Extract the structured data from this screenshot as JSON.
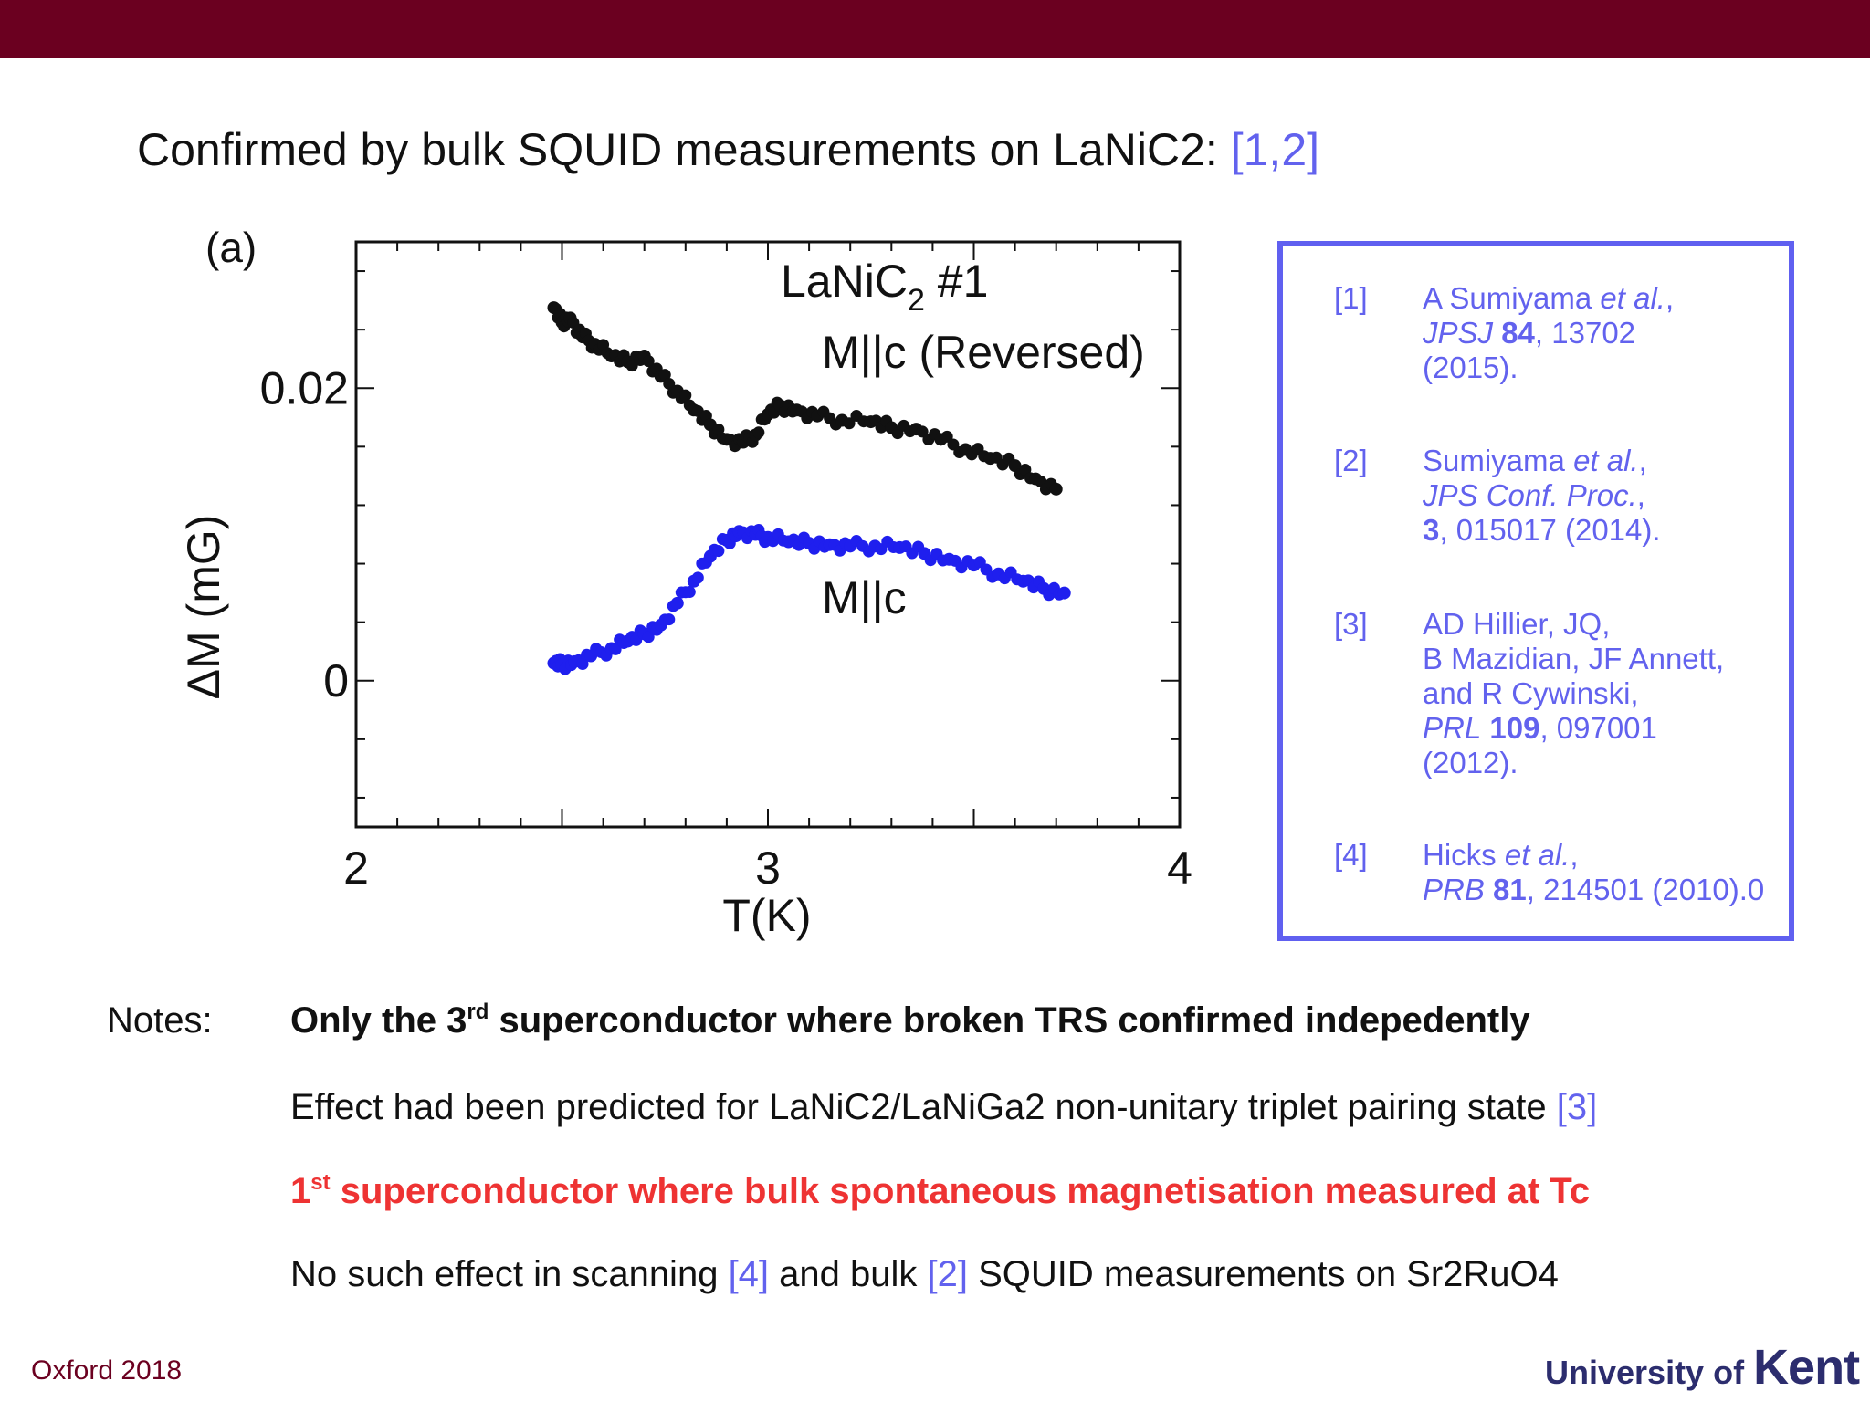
{
  "header": {
    "title_text": "Confirmed by bulk SQUID measurements on LaNiC2:",
    "title_cite": "[1,2]"
  },
  "figure": {
    "panel_label": "(a)",
    "sample_label": "LaNiC",
    "sample_sub": "2",
    "sample_suffix": " #1",
    "reversed_label": "M||c (Reversed)",
    "normal_label": "M||c"
  },
  "chart_data": {
    "type": "scatter",
    "xlabel": "T(K)",
    "ylabel": "ΔM (mG)",
    "xlim": [
      2,
      4
    ],
    "ylim": [
      -0.01,
      0.03
    ],
    "x_ticks": [
      2,
      3,
      4
    ],
    "x_tick_labels": [
      "2",
      "3",
      "4"
    ],
    "y_ticks": [
      0,
      0.02
    ],
    "y_tick_labels": [
      "0",
      "0.02"
    ],
    "series": [
      {
        "name": "M||c (Reversed)",
        "color": "#111111",
        "points": [
          [
            2.48,
            0.0255
          ],
          [
            2.5,
            0.0245
          ],
          [
            2.52,
            0.0248
          ],
          [
            2.55,
            0.0235
          ],
          [
            2.58,
            0.023
          ],
          [
            2.62,
            0.0222
          ],
          [
            2.66,
            0.0218
          ],
          [
            2.7,
            0.0222
          ],
          [
            2.74,
            0.0208
          ],
          [
            2.78,
            0.0198
          ],
          [
            2.82,
            0.0185
          ],
          [
            2.86,
            0.0175
          ],
          [
            2.9,
            0.0165
          ],
          [
            2.94,
            0.0163
          ],
          [
            2.97,
            0.0168
          ],
          [
            3.0,
            0.0182
          ],
          [
            3.03,
            0.0188
          ],
          [
            3.07,
            0.0185
          ],
          [
            3.12,
            0.0181
          ],
          [
            3.18,
            0.0178
          ],
          [
            3.25,
            0.0177
          ],
          [
            3.3,
            0.0173
          ],
          [
            3.36,
            0.0172
          ],
          [
            3.42,
            0.0165
          ],
          [
            3.48,
            0.0158
          ],
          [
            3.54,
            0.0152
          ],
          [
            3.6,
            0.0147
          ],
          [
            3.65,
            0.0138
          ],
          [
            3.7,
            0.0131
          ]
        ]
      },
      {
        "name": "M||c",
        "color": "#1f1fee",
        "points": [
          [
            2.48,
            0.0012
          ],
          [
            2.5,
            0.0011
          ],
          [
            2.53,
            0.0013
          ],
          [
            2.57,
            0.0017
          ],
          [
            2.62,
            0.0022
          ],
          [
            2.66,
            0.0027
          ],
          [
            2.7,
            0.0032
          ],
          [
            2.74,
            0.0038
          ],
          [
            2.78,
            0.0053
          ],
          [
            2.82,
            0.0068
          ],
          [
            2.86,
            0.0085
          ],
          [
            2.9,
            0.0096
          ],
          [
            2.93,
            0.0102
          ],
          [
            2.97,
            0.01
          ],
          [
            3.0,
            0.0098
          ],
          [
            3.05,
            0.0095
          ],
          [
            3.1,
            0.0094
          ],
          [
            3.15,
            0.0093
          ],
          [
            3.2,
            0.0092
          ],
          [
            3.26,
            0.0092
          ],
          [
            3.32,
            0.0091
          ],
          [
            3.38,
            0.0087
          ],
          [
            3.44,
            0.0083
          ],
          [
            3.5,
            0.0079
          ],
          [
            3.56,
            0.0073
          ],
          [
            3.62,
            0.0068
          ],
          [
            3.67,
            0.0063
          ],
          [
            3.72,
            0.006
          ]
        ]
      }
    ]
  },
  "references": [
    {
      "num": "[1]",
      "lines": [
        [
          {
            "t": "A Sumiyama "
          },
          {
            "t": "et al.",
            "s": "i"
          },
          {
            "t": ","
          }
        ],
        [
          {
            "t": "JPSJ",
            "s": "i"
          },
          {
            "t": " "
          },
          {
            "t": "84",
            "s": "b"
          },
          {
            "t": ", 13702"
          }
        ],
        [
          {
            "t": "(2015)."
          }
        ]
      ]
    },
    {
      "num": "[2]",
      "lines": [
        [
          {
            "t": "Sumiyama "
          },
          {
            "t": "et al.",
            "s": "i"
          },
          {
            "t": ","
          }
        ],
        [
          {
            "t": "JPS Conf. Proc.",
            "s": "i"
          },
          {
            "t": ","
          }
        ],
        [
          {
            "t": "3",
            "s": "b"
          },
          {
            "t": ", 015017 (2014)."
          }
        ]
      ]
    },
    {
      "num": "[3]",
      "lines": [
        [
          {
            "t": "AD Hillier, JQ,"
          }
        ],
        [
          {
            "t": "B Mazidian, JF Annett,"
          }
        ],
        [
          {
            "t": "and R Cywinski,"
          }
        ],
        [
          {
            "t": "PRL",
            "s": "i"
          },
          {
            "t": " "
          },
          {
            "t": "109",
            "s": "b"
          },
          {
            "t": ", 097001"
          }
        ],
        [
          {
            "t": "(2012)."
          }
        ]
      ]
    },
    {
      "num": "[4]",
      "lines": [
        [
          {
            "t": "Hicks "
          },
          {
            "t": "et al.",
            "s": "i"
          },
          {
            "t": ","
          }
        ],
        [
          {
            "t": "PRB",
            "s": "i"
          },
          {
            "t": " "
          },
          {
            "t": "81",
            "s": "b"
          },
          {
            "t": ", 214501 (2010).0"
          }
        ]
      ]
    }
  ],
  "notes": {
    "label": "Notes:",
    "line1": {
      "pre": "Only the 3",
      "sup": "rd",
      "post": " superconductor where broken TRS confirmed indepedently"
    },
    "line2": {
      "text": "Effect had been predicted for LaNiC2/LaNiGa2 non-unitary triplet pairing state ",
      "cite": "[3]"
    },
    "line3": {
      "pre": "1",
      "sup": "st",
      "post": " superconductor where bulk spontaneous magnetisation measured at Tc"
    },
    "line4": {
      "t1": "No such effect in scanning ",
      "c1": "[4]",
      "t2": " and bulk ",
      "c2": "[2]",
      "t3": " SQUID measurements on Sr2RuO4"
    }
  },
  "footer": {
    "left": "Oxford 2018",
    "logo_prefix": "University of ",
    "logo_name": "Kent"
  }
}
